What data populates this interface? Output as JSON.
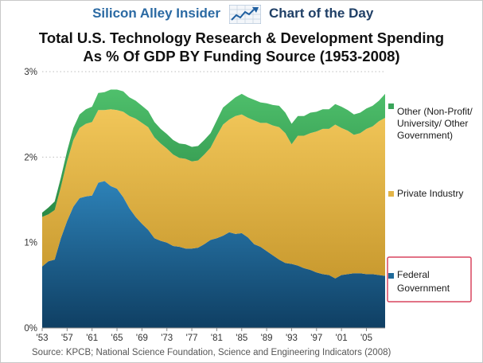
{
  "header": {
    "brand": "Silicon Alley Insider",
    "logo_icon": "rising-line-chart-icon",
    "section": "Chart of the Day"
  },
  "title_lines": [
    "Total U.S. Technology Research & Development Spending",
    "As % Of GDP BY Funding Source (1953-2008)"
  ],
  "source": "Source: KPCB; National Science Foundation, Science and Engineering Indicators (2008)",
  "colors": {
    "federal": "#1f6a9a",
    "private": "#e3b547",
    "other": "#3aa55a",
    "highlight_box": "#d9455f",
    "brand_blue": "#2b6aa3"
  },
  "chart_data": {
    "type": "area",
    "stacked": true,
    "title": "Total U.S. Technology Research & Development Spending As % Of GDP BY Funding Source (1953-2008)",
    "x": [
      1953,
      1954,
      1955,
      1956,
      1957,
      1958,
      1959,
      1960,
      1961,
      1962,
      1963,
      1964,
      1965,
      1966,
      1967,
      1968,
      1969,
      1970,
      1971,
      1972,
      1973,
      1974,
      1975,
      1976,
      1977,
      1978,
      1979,
      1980,
      1981,
      1982,
      1983,
      1984,
      1985,
      1986,
      1987,
      1988,
      1989,
      1990,
      1991,
      1992,
      1993,
      1994,
      1995,
      1996,
      1997,
      1998,
      1999,
      2000,
      2001,
      2002,
      2003,
      2004,
      2005,
      2006,
      2007,
      2008
    ],
    "x_tick_labels": [
      "'53",
      "'57",
      "'61",
      "'65",
      "'69",
      "'73",
      "'77",
      "'81",
      "'85",
      "'89",
      "'93",
      "'97",
      "'01",
      "'05"
    ],
    "x_tick_years": [
      1953,
      1957,
      1961,
      1965,
      1969,
      1973,
      1977,
      1981,
      1985,
      1989,
      1993,
      1997,
      2001,
      2005
    ],
    "y_tick_labels": [
      "0%",
      "1%",
      "2%",
      "3%"
    ],
    "y_tick_values": [
      0,
      1,
      2,
      3
    ],
    "ylim": [
      0,
      3
    ],
    "series": [
      {
        "name": "Federal Government",
        "values": [
          0.72,
          0.78,
          0.8,
          1.05,
          1.25,
          1.42,
          1.52,
          1.54,
          1.55,
          1.7,
          1.72,
          1.66,
          1.63,
          1.53,
          1.4,
          1.3,
          1.22,
          1.15,
          1.05,
          1.02,
          1.0,
          0.96,
          0.95,
          0.93,
          0.93,
          0.94,
          0.98,
          1.03,
          1.05,
          1.08,
          1.12,
          1.1,
          1.11,
          1.06,
          0.98,
          0.95,
          0.9,
          0.85,
          0.8,
          0.76,
          0.75,
          0.73,
          0.7,
          0.68,
          0.65,
          0.63,
          0.62,
          0.58,
          0.62,
          0.63,
          0.64,
          0.64,
          0.63,
          0.63,
          0.62,
          0.61
        ]
      },
      {
        "name": "Private Industry",
        "values": [
          0.58,
          0.55,
          0.58,
          0.6,
          0.7,
          0.78,
          0.82,
          0.85,
          0.86,
          0.85,
          0.83,
          0.9,
          0.92,
          1.0,
          1.08,
          1.15,
          1.18,
          1.2,
          1.18,
          1.14,
          1.1,
          1.07,
          1.04,
          1.05,
          1.02,
          1.02,
          1.05,
          1.08,
          1.2,
          1.3,
          1.32,
          1.38,
          1.39,
          1.4,
          1.45,
          1.45,
          1.5,
          1.52,
          1.55,
          1.52,
          1.4,
          1.52,
          1.55,
          1.6,
          1.65,
          1.7,
          1.71,
          1.8,
          1.72,
          1.68,
          1.62,
          1.64,
          1.7,
          1.73,
          1.8,
          1.85
        ]
      },
      {
        "name": "Other (Non-Profit/ University/ Other Government)",
        "values": [
          0.05,
          0.08,
          0.1,
          0.11,
          0.12,
          0.14,
          0.16,
          0.17,
          0.18,
          0.2,
          0.21,
          0.23,
          0.24,
          0.24,
          0.22,
          0.21,
          0.2,
          0.19,
          0.18,
          0.17,
          0.17,
          0.17,
          0.17,
          0.17,
          0.17,
          0.17,
          0.17,
          0.17,
          0.18,
          0.2,
          0.2,
          0.22,
          0.24,
          0.24,
          0.24,
          0.24,
          0.23,
          0.24,
          0.25,
          0.24,
          0.24,
          0.23,
          0.23,
          0.24,
          0.23,
          0.23,
          0.23,
          0.24,
          0.25,
          0.24,
          0.24,
          0.24,
          0.24,
          0.24,
          0.24,
          0.28
        ]
      }
    ],
    "grid": "horizontal dotted",
    "legend_placement": "right, labels beside each band",
    "highlighted_legend_entry": "Federal Government"
  }
}
